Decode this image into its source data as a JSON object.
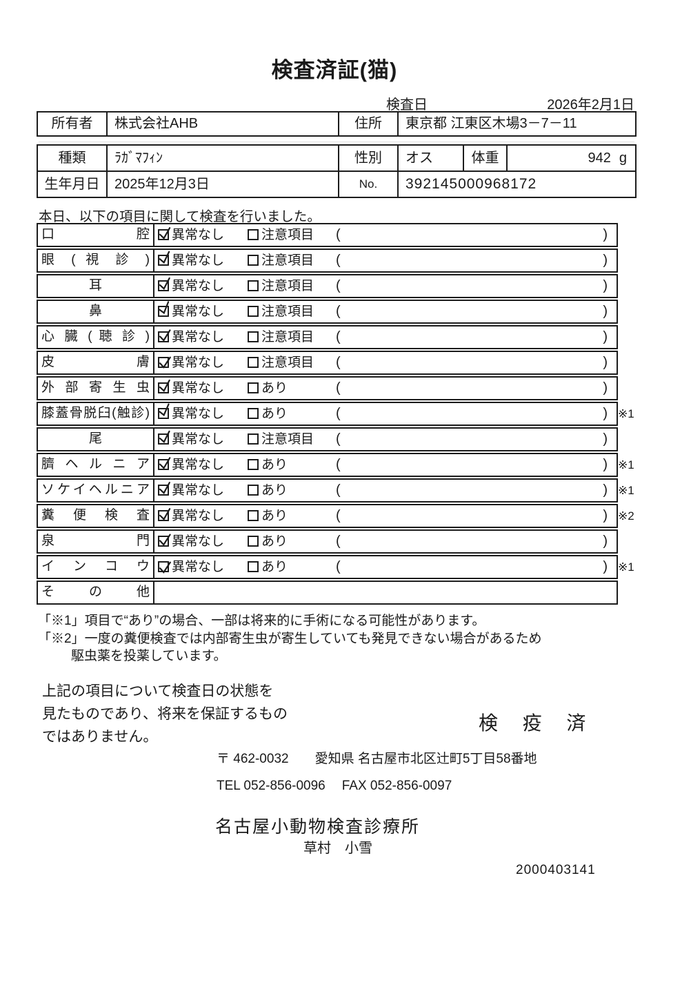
{
  "document": {
    "title": "検査済証(猫)",
    "exam_date_label": "検査日",
    "exam_date": "2026年2月1日"
  },
  "owner": {
    "label": "所有者",
    "name": "株式会社AHB",
    "address_label": "住所",
    "address": "東京都 江東区木場3－7－11"
  },
  "animal": {
    "breed_label": "種類",
    "breed": "ﾗｶﾞﾏﾌｨﾝ",
    "sex_label": "性別",
    "sex": "オス",
    "weight_label": "体重",
    "weight_value": "942",
    "weight_unit": "g",
    "birth_label": "生年月日",
    "birth_date": "2025年12月3日",
    "no_label": "No.",
    "no_value": "392145000968172"
  },
  "intro": "本日、以下の項目に関して検査を行いました。",
  "exam": {
    "rows": [
      {
        "item": "口 腔",
        "opt1": "異常なし",
        "opt1_checked": true,
        "opt2": "注意項目",
        "opt2_checked": false,
        "paren_value": "",
        "note": ""
      },
      {
        "item": "眼 ( 視 診 )",
        "opt1": "異常なし",
        "opt1_checked": true,
        "opt2": "注意項目",
        "opt2_checked": false,
        "paren_value": "",
        "note": ""
      },
      {
        "item": "耳",
        "opt1": "異常なし",
        "opt1_checked": true,
        "opt2": "注意項目",
        "opt2_checked": false,
        "paren_value": "",
        "note": ""
      },
      {
        "item": "鼻",
        "opt1": "異常なし",
        "opt1_checked": true,
        "opt2": "注意項目",
        "opt2_checked": false,
        "paren_value": "",
        "note": ""
      },
      {
        "item": "心 臓 ( 聴 診 )",
        "opt1": "異常なし",
        "opt1_checked": true,
        "opt2": "注意項目",
        "opt2_checked": false,
        "paren_value": "",
        "note": ""
      },
      {
        "item": "皮 膚",
        "opt1": "異常なし",
        "opt1_checked": true,
        "opt2": "注意項目",
        "opt2_checked": false,
        "paren_value": "",
        "note": ""
      },
      {
        "item": "外 部 寄 生 虫",
        "opt1": "異常なし",
        "opt1_checked": true,
        "opt2": "あり",
        "opt2_checked": false,
        "paren_value": "",
        "note": ""
      },
      {
        "item": "膝蓋骨脱臼(触診)",
        "opt1": "異常なし",
        "opt1_checked": true,
        "opt2": "あり",
        "opt2_checked": false,
        "paren_value": "",
        "note": "※1"
      },
      {
        "item": "尾",
        "opt1": "異常なし",
        "opt1_checked": true,
        "opt2": "注意項目",
        "opt2_checked": false,
        "paren_value": "",
        "note": ""
      },
      {
        "item": "臍 ヘ ル ニ ア",
        "opt1": "異常なし",
        "opt1_checked": true,
        "opt2": "あり",
        "opt2_checked": false,
        "paren_value": "",
        "note": "※1"
      },
      {
        "item": "ソケイヘルニア",
        "opt1": "異常なし",
        "opt1_checked": true,
        "opt2": "あり",
        "opt2_checked": false,
        "paren_value": "",
        "note": "※1"
      },
      {
        "item": "糞 便 検 査",
        "opt1": "異常なし",
        "opt1_checked": true,
        "opt2": "あり",
        "opt2_checked": false,
        "paren_value": "",
        "note": "※2"
      },
      {
        "item": "泉 門",
        "opt1": "異常なし",
        "opt1_checked": true,
        "opt2": "あり",
        "opt2_checked": false,
        "paren_value": "",
        "note": ""
      },
      {
        "item": "イ ン コ ウ",
        "opt1": "異常なし",
        "opt1_checked": true,
        "opt2": "あり",
        "opt2_checked": false,
        "paren_value": "",
        "note": "※1"
      },
      {
        "item": "そ の 他",
        "opt1": null,
        "opt1_checked": false,
        "opt2": null,
        "opt2_checked": false,
        "paren_value": "",
        "note": ""
      }
    ]
  },
  "footnotes": {
    "line1": "「※1」項目で“あり”の場合、一部は将来的に手術になる可能性があります。",
    "line2": "「※2」一度の糞便検査では内部寄生虫が寄生していても発見できない場合があるため",
    "line3": "駆虫薬を投薬しています。"
  },
  "statement": {
    "line1": "上記の項目について検査日の状態を",
    "line2": "見たものであり、将来を保証するもの",
    "line3": "ではありません。"
  },
  "stamp": "検 疫 済",
  "clinic": {
    "postal": "〒 462-0032",
    "address": "愛知県 名古屋市北区辻町5丁目58番地",
    "tel": "TEL 052-856-0096",
    "fax": "FAX 052-856-0097",
    "name": "名古屋小動物検査診療所",
    "veterinarian": "草村　小雪",
    "code": "2000403141"
  },
  "colors": {
    "ink": "#1a1a1a",
    "paper": "#ffffff"
  }
}
